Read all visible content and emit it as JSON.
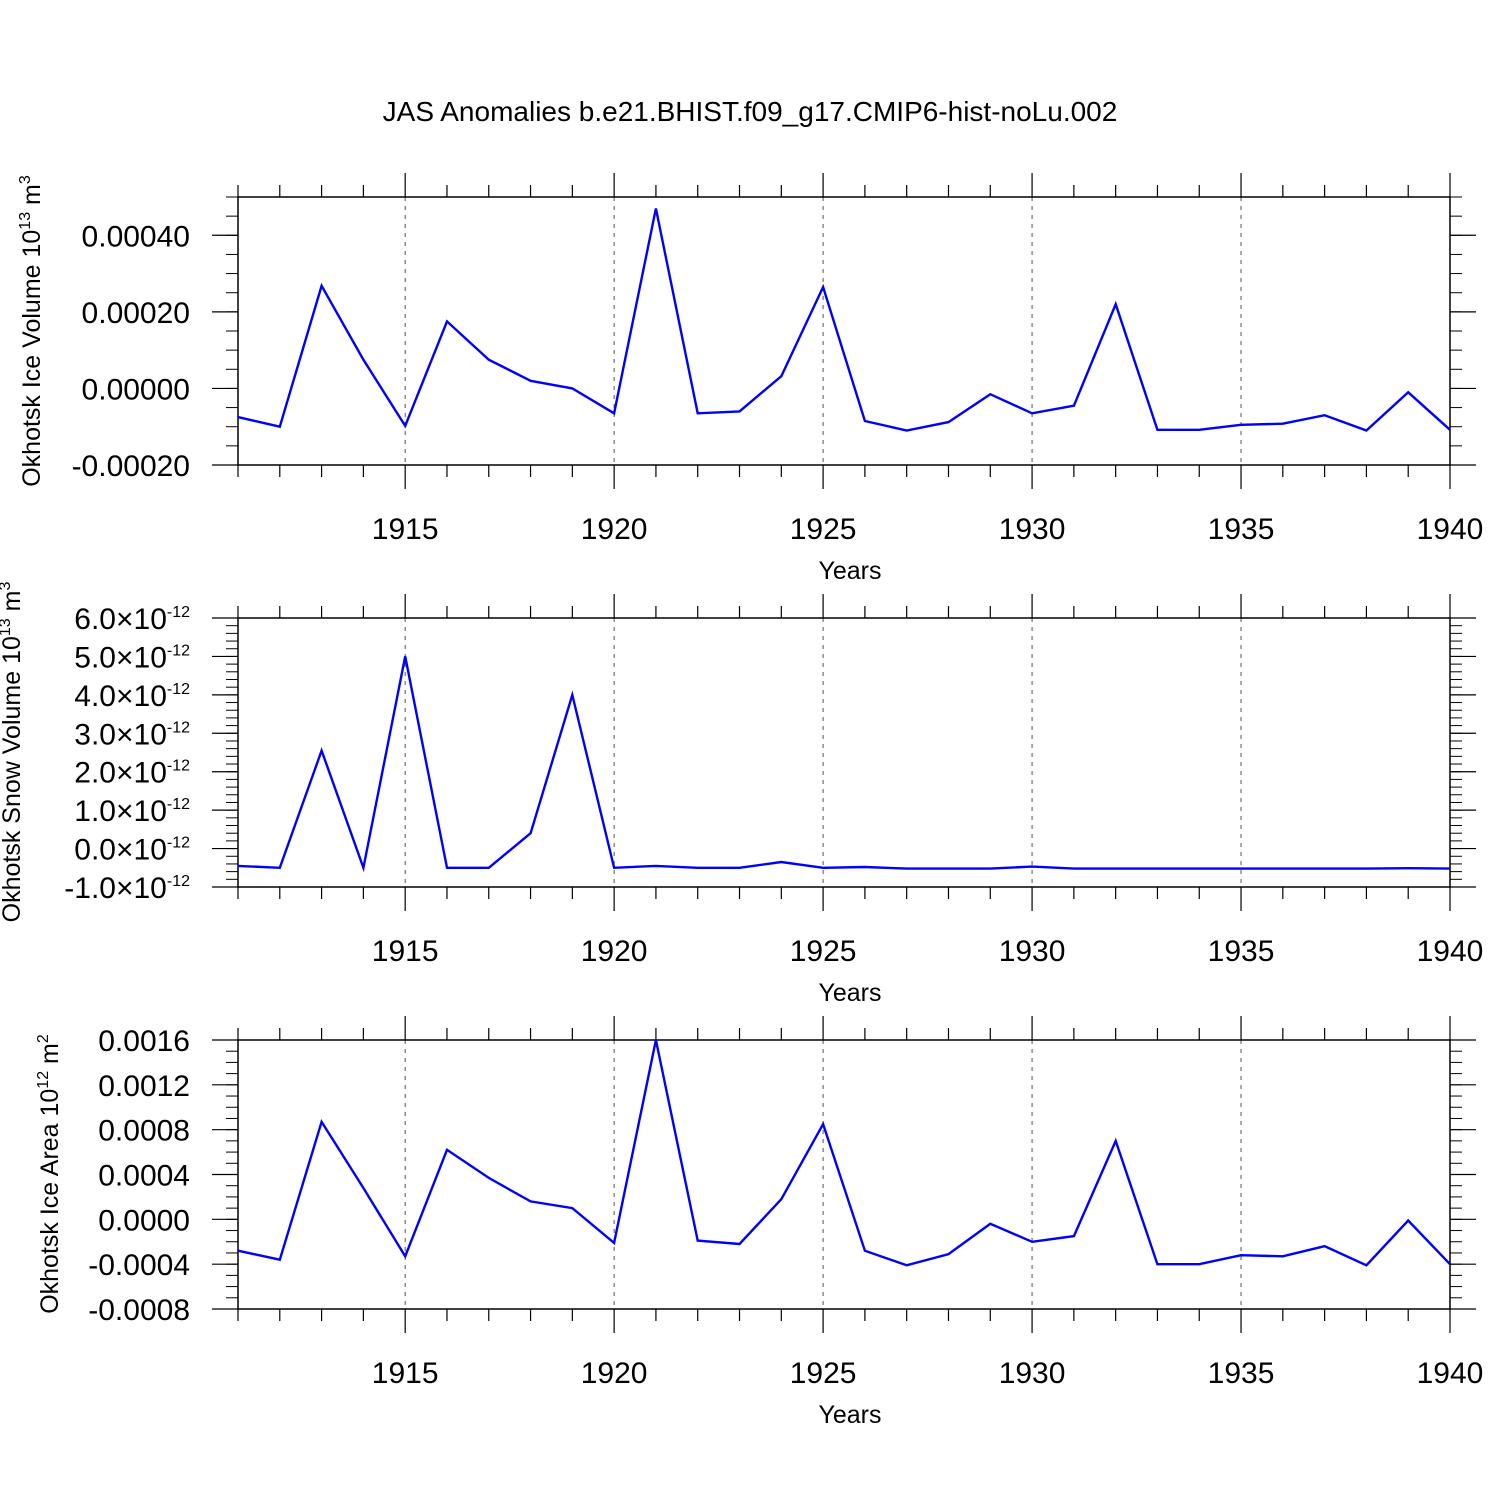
{
  "title": "JAS Anomalies b.e21.BHIST.f09_g17.CMIP6-hist-noLu.002",
  "colors": {
    "line": "#0000ff",
    "axis": "#000000",
    "grid": "#555555"
  },
  "chart_data": [
    {
      "type": "line",
      "ylabel_main": "Okhotsk Ice Volume 10",
      "ylabel_exp": "13",
      "ylabel_unit": " m",
      "ylabel_unit_exp": "3",
      "xlabel": "Years",
      "xlim": [
        1911,
        1940
      ],
      "ylim": [
        -0.0002,
        0.0005
      ],
      "x_ticks": [
        1915,
        1920,
        1925,
        1930,
        1935,
        1940
      ],
      "y_ticks": [
        {
          "value": -0.0002,
          "label": "-0.00020"
        },
        {
          "value": 0.0,
          "label": "0.00000"
        },
        {
          "value": 0.0002,
          "label": "0.00020"
        },
        {
          "value": 0.0004,
          "label": "0.00040"
        }
      ],
      "y_minor_step": 5e-05,
      "grid": "vertical-dashed",
      "x": [
        1911,
        1912,
        1913,
        1914,
        1915,
        1916,
        1917,
        1918,
        1919,
        1920,
        1921,
        1922,
        1923,
        1924,
        1925,
        1926,
        1927,
        1928,
        1929,
        1930,
        1931,
        1932,
        1933,
        1934,
        1935,
        1936,
        1937,
        1938,
        1939,
        1940
      ],
      "series": [
        {
          "name": "Okhotsk Ice Volume",
          "values": [
            -7.5e-05,
            -0.0001,
            0.000268,
            7.5e-05,
            -9.8e-05,
            0.000175,
            7.5e-05,
            2e-05,
            0.0,
            -6.5e-05,
            0.00047,
            -6.5e-05,
            -6e-05,
            3.2e-05,
            0.000265,
            -8.5e-05,
            -0.00011,
            -8.8e-05,
            -1.5e-05,
            -6.5e-05,
            -4.5e-05,
            0.00022,
            -0.000108,
            -0.000108,
            -9.5e-05,
            -9.2e-05,
            -7e-05,
            -0.00011,
            -1e-05,
            -0.000108
          ]
        }
      ]
    },
    {
      "type": "line",
      "ylabel_main": "Okhotsk Snow Volume 10",
      "ylabel_exp": "13",
      "ylabel_unit": " m",
      "ylabel_unit_exp": "3",
      "xlabel": "Years",
      "xlim": [
        1911,
        1940
      ],
      "ylim": [
        -1e-12,
        6e-12
      ],
      "x_ticks": [
        1915,
        1920,
        1925,
        1930,
        1935,
        1940
      ],
      "y_ticks": [
        {
          "value": -1e-12,
          "label": "-1.0×10",
          "exp": "-12"
        },
        {
          "value": 0.0,
          "label": "0.0×10",
          "exp": "-12"
        },
        {
          "value": 1e-12,
          "label": "1.0×10",
          "exp": "-12"
        },
        {
          "value": 2e-12,
          "label": "2.0×10",
          "exp": "-12"
        },
        {
          "value": 3e-12,
          "label": "3.0×10",
          "exp": "-12"
        },
        {
          "value": 4e-12,
          "label": "4.0×10",
          "exp": "-12"
        },
        {
          "value": 5e-12,
          "label": "5.0×10",
          "exp": "-12"
        },
        {
          "value": 6e-12,
          "label": "6.0×10",
          "exp": "-12"
        }
      ],
      "y_minor_step": 2e-13,
      "grid": "vertical-dashed",
      "x": [
        1911,
        1912,
        1913,
        1914,
        1915,
        1916,
        1917,
        1918,
        1919,
        1920,
        1921,
        1922,
        1923,
        1924,
        1925,
        1926,
        1927,
        1928,
        1929,
        1930,
        1931,
        1932,
        1933,
        1934,
        1935,
        1936,
        1937,
        1938,
        1939,
        1940
      ],
      "series": [
        {
          "name": "Okhotsk Snow Volume",
          "values": [
            -4.5e-13,
            -5e-13,
            2.55e-12,
            -5e-13,
            5e-12,
            -5e-13,
            -5e-13,
            4e-13,
            4e-12,
            -5e-13,
            -4.5e-13,
            -5e-13,
            -5e-13,
            -3.5e-13,
            -5e-13,
            -4.8e-13,
            -5.2e-13,
            -5.2e-13,
            -5.2e-13,
            -4.7e-13,
            -5.2e-13,
            -5.2e-13,
            -5.2e-13,
            -5.2e-13,
            -5.2e-13,
            -5.2e-13,
            -5.2e-13,
            -5.2e-13,
            -5.1e-13,
            -5.2e-13
          ]
        }
      ]
    },
    {
      "type": "line",
      "ylabel_main": "Okhotsk Ice Area 10",
      "ylabel_exp": "12",
      "ylabel_unit": " m",
      "ylabel_unit_exp": "2",
      "xlabel": "Years",
      "xlim": [
        1911,
        1940
      ],
      "ylim": [
        -0.0008,
        0.0016
      ],
      "x_ticks": [
        1915,
        1920,
        1925,
        1930,
        1935,
        1940
      ],
      "y_ticks": [
        {
          "value": -0.0008,
          "label": "-0.0008"
        },
        {
          "value": -0.0004,
          "label": "-0.0004"
        },
        {
          "value": 0.0,
          "label": "0.0000"
        },
        {
          "value": 0.0004,
          "label": "0.0004"
        },
        {
          "value": 0.0008,
          "label": "0.0008"
        },
        {
          "value": 0.0012,
          "label": "0.0012"
        },
        {
          "value": 0.0016,
          "label": "0.0016"
        }
      ],
      "y_minor_step": 0.0001,
      "grid": "vertical-dashed",
      "x": [
        1911,
        1912,
        1913,
        1914,
        1915,
        1916,
        1917,
        1918,
        1919,
        1920,
        1921,
        1922,
        1923,
        1924,
        1925,
        1926,
        1927,
        1928,
        1929,
        1930,
        1931,
        1932,
        1933,
        1934,
        1935,
        1936,
        1937,
        1938,
        1939,
        1940
      ],
      "series": [
        {
          "name": "Okhotsk Ice Area",
          "values": [
            -0.00028,
            -0.00036,
            0.00087,
            0.00028,
            -0.00033,
            0.00062,
            0.00037,
            0.00016,
            0.0001,
            -0.00021,
            0.0016,
            -0.00019,
            -0.00022,
            0.00018,
            0.00085,
            -0.00028,
            -0.00041,
            -0.00031,
            -4e-05,
            -0.0002,
            -0.00015,
            0.0007,
            -0.0004,
            -0.0004,
            -0.00032,
            -0.00033,
            -0.00024,
            -0.00041,
            -1e-05,
            -0.0004
          ]
        }
      ]
    }
  ]
}
